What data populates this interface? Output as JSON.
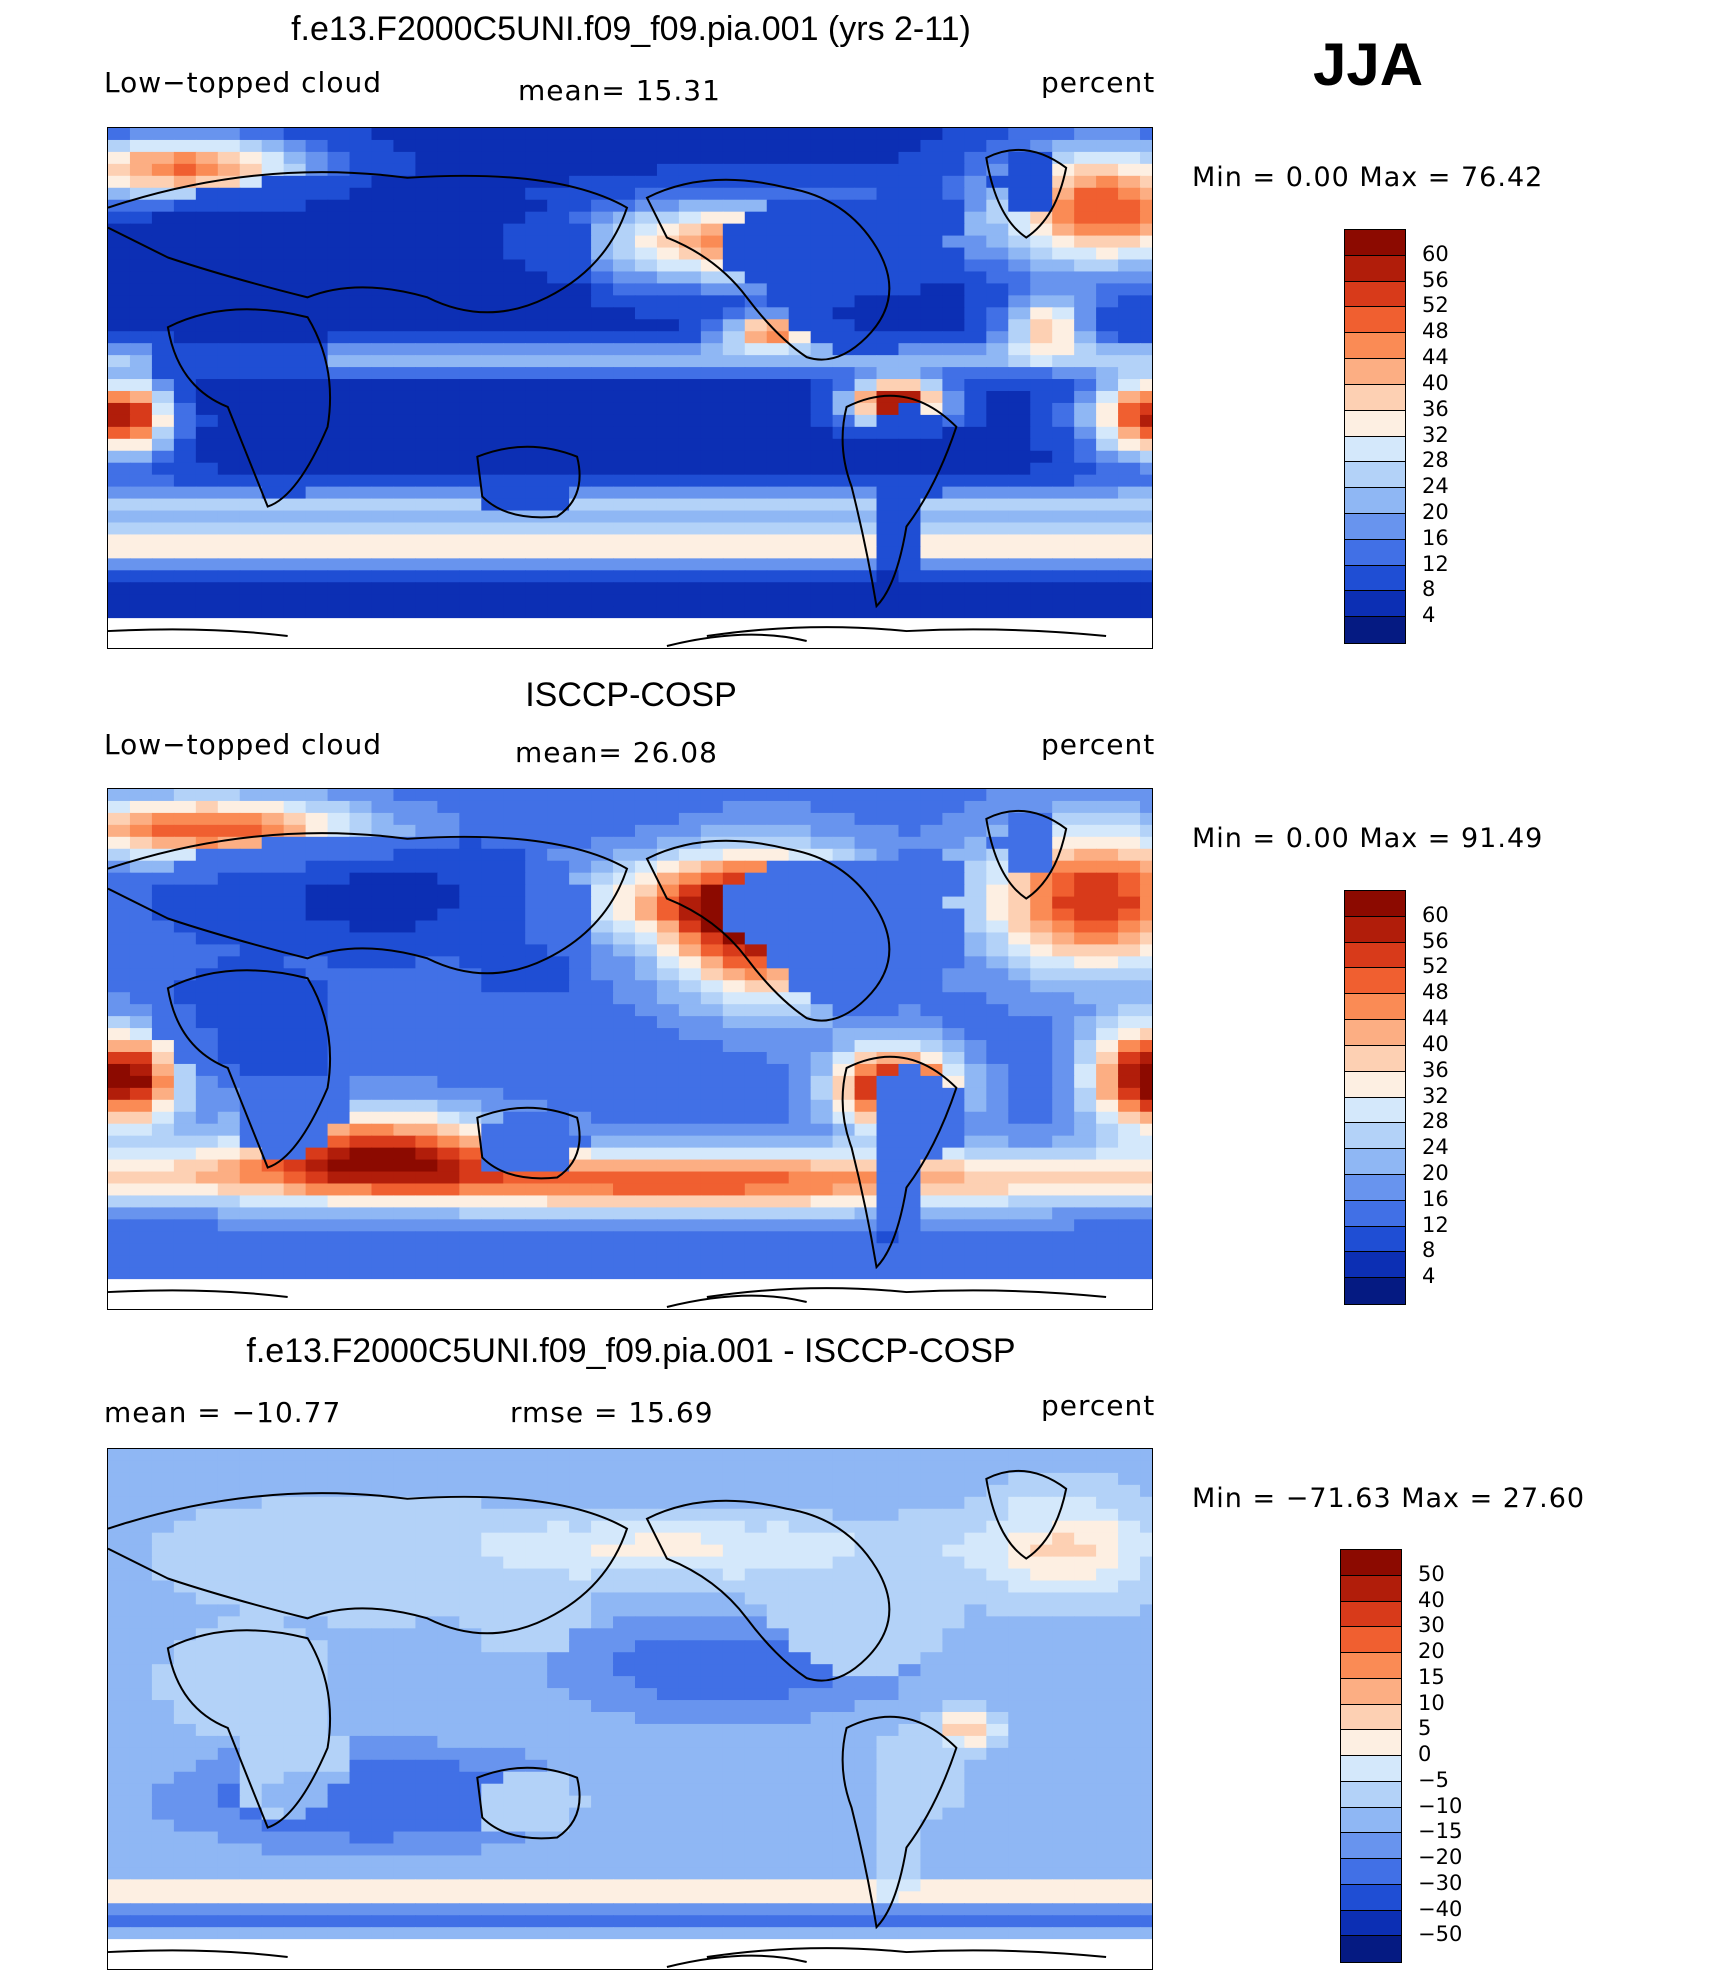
{
  "season": "JJA",
  "chart_data": [
    {
      "type": "heatmap",
      "title": "f.e13.F2000C5UNI.f09_f09.pia.001 (yrs 2-11)",
      "left_label": "Low−topped cloud",
      "center_label": "mean=   15.31",
      "units": "percent",
      "minmax": "Min =    0.00 Max =   76.42",
      "mean": 15.31,
      "min": 0.0,
      "max": 76.42,
      "colorbar_levels": [
        "60",
        "56",
        "52",
        "48",
        "44",
        "40",
        "36",
        "32",
        "28",
        "24",
        "20",
        "16",
        "12",
        "8",
        "4"
      ],
      "colors": [
        "#8c0a00",
        "#b11d0a",
        "#d83a1a",
        "#f05f30",
        "#fa8b55",
        "#fcae83",
        "#fdd0b3",
        "#fdefe2",
        "#d4e8fb",
        "#b3d2f8",
        "#8fb7f4",
        "#6894ee",
        "#4170e6",
        "#1f4ed4",
        "#0c2fb4",
        "#051a82"
      ],
      "field": "model"
    },
    {
      "type": "heatmap",
      "title": "ISCCP-COSP",
      "left_label": "Low−topped cloud",
      "center_label": "mean=   26.08",
      "units": "percent",
      "minmax": "Min =    0.00 Max =   91.49",
      "mean": 26.08,
      "min": 0.0,
      "max": 91.49,
      "colorbar_levels": [
        "60",
        "56",
        "52",
        "48",
        "44",
        "40",
        "36",
        "32",
        "28",
        "24",
        "20",
        "16",
        "12",
        "8",
        "4"
      ],
      "colors": [
        "#8c0a00",
        "#b11d0a",
        "#d83a1a",
        "#f05f30",
        "#fa8b55",
        "#fcae83",
        "#fdd0b3",
        "#fdefe2",
        "#d4e8fb",
        "#b3d2f8",
        "#8fb7f4",
        "#6894ee",
        "#4170e6",
        "#1f4ed4",
        "#0c2fb4",
        "#051a82"
      ],
      "field": "obs"
    },
    {
      "type": "heatmap",
      "title": "f.e13.F2000C5UNI.f09_f09.pia.001 - ISCCP-COSP",
      "left_label": "mean = −10.77",
      "center_label": "rmse =   15.69",
      "units": "percent",
      "minmax": "Min = −71.63 Max =   27.60",
      "mean": -10.77,
      "rmse": 15.69,
      "min": -71.63,
      "max": 27.6,
      "colorbar_levels": [
        "50",
        "40",
        "30",
        "20",
        "15",
        "10",
        "5",
        "0",
        "−5",
        "−10",
        "−15",
        "−20",
        "−30",
        "−40",
        "−50"
      ],
      "colors": [
        "#8c0a00",
        "#b11d0a",
        "#d83a1a",
        "#f05f30",
        "#fa8b55",
        "#fcae83",
        "#fdd0b3",
        "#fdefe2",
        "#d4e8fb",
        "#b3d2f8",
        "#8fb7f4",
        "#6894ee",
        "#4170e6",
        "#1f4ed4",
        "#0c2fb4",
        "#051a82"
      ],
      "field": "diff"
    }
  ]
}
